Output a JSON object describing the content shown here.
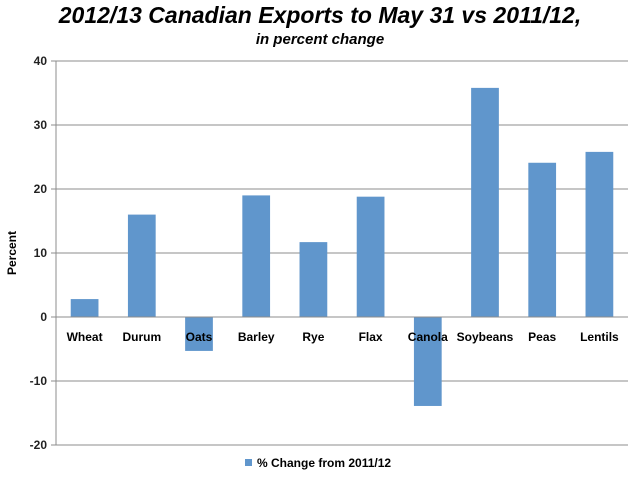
{
  "chart_data": {
    "type": "bar",
    "title": "2012/13 Canadian Exports to May 31 vs 2011/12,",
    "subtitle": "in percent change",
    "ylabel": "Percent",
    "xlabel": "",
    "ylim": [
      -20,
      40
    ],
    "yticks": [
      -20,
      -10,
      0,
      10,
      20,
      30,
      40
    ],
    "categories": [
      "Wheat",
      "Durum",
      "Oats",
      "Barley",
      "Rye",
      "Flax",
      "Canola",
      "Soybeans",
      "Peas",
      "Lentils"
    ],
    "series": [
      {
        "name": "% Change from 2011/12",
        "color": "#6096cc",
        "values": [
          2.8,
          16.0,
          -5.3,
          19.0,
          11.7,
          18.8,
          -13.9,
          35.8,
          24.1,
          25.8
        ]
      }
    ],
    "grid": true,
    "legend_position": "bottom"
  }
}
